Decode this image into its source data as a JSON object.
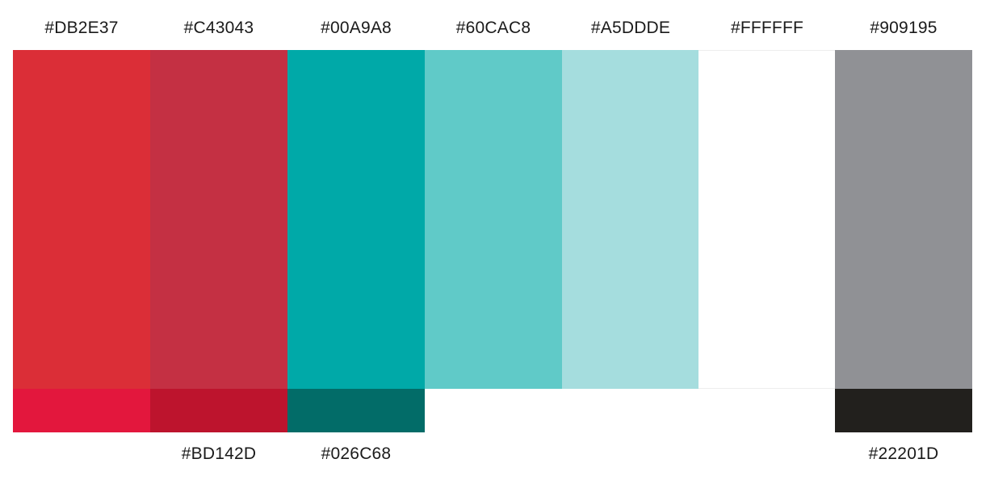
{
  "palette": {
    "swatches": [
      {
        "id": "red",
        "label": "#DB2E37",
        "color": "#DB2E37",
        "shade_label": "",
        "shade_color": "#E3173D"
      },
      {
        "id": "crimson",
        "label": "#C43043",
        "color": "#C43043",
        "shade_label": "#BD142D",
        "shade_color": "#BD142D"
      },
      {
        "id": "teal",
        "label": "#00A9A8",
        "color": "#00A9A8",
        "shade_label": "#026C68",
        "shade_color": "#026C68"
      },
      {
        "id": "aqua",
        "label": "#60CAC8",
        "color": "#60CAC8",
        "shade_label": "",
        "shade_color": ""
      },
      {
        "id": "light-aqua",
        "label": "#A5DDDE",
        "color": "#A5DDDE",
        "shade_label": "",
        "shade_color": ""
      },
      {
        "id": "white",
        "label": "#FFFFFF",
        "color": "#FFFFFF",
        "shade_label": "",
        "shade_color": ""
      },
      {
        "id": "gray",
        "label": "#909195",
        "color": "#909195",
        "shade_label": "#22201D",
        "shade_color": "#22201D"
      }
    ]
  }
}
